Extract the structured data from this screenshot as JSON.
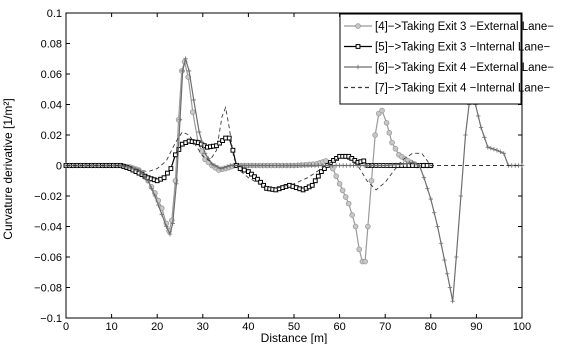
{
  "chart_data": {
    "type": "line",
    "title": "",
    "xlabel": "Distance [m]",
    "ylabel": "Curvature derivative [1/m²]",
    "xlim": [
      0,
      100
    ],
    "ylim": [
      -0.1,
      0.1
    ],
    "x_ticks": [
      0,
      10,
      20,
      30,
      40,
      50,
      60,
      70,
      80,
      90,
      100
    ],
    "y_ticks": [
      -0.1,
      -0.08,
      -0.06,
      -0.04,
      -0.02,
      0,
      0.02,
      0.04,
      0.06,
      0.08,
      0.1
    ],
    "x_tick_labels": [
      "0",
      "10",
      "20",
      "30",
      "40",
      "50",
      "60",
      "70",
      "80",
      "90",
      "100"
    ],
    "y_tick_labels": [
      "−0.1",
      "−0.08",
      "−0.06",
      "−0.04",
      "−0.02",
      "0",
      "0.02",
      "0.04",
      "0.06",
      "0.08",
      "0.1"
    ],
    "grid": false,
    "legend_position": "top-right",
    "series": [
      {
        "name": "[4]−>Taking Exit 3 −External Lane−",
        "color": "#9a9a9a",
        "marker": "circle",
        "dash": "solid",
        "points": [
          [
            0,
            0
          ],
          [
            12,
            0
          ],
          [
            14,
            -0.001
          ],
          [
            16,
            -0.003
          ],
          [
            18,
            -0.01
          ],
          [
            19.5,
            -0.018
          ],
          [
            21,
            -0.028
          ],
          [
            22,
            -0.038
          ],
          [
            22.6,
            -0.043
          ],
          [
            23.2,
            -0.036
          ],
          [
            24,
            -0.01
          ],
          [
            24.7,
            0.03
          ],
          [
            25.4,
            0.062
          ],
          [
            26,
            0.068
          ],
          [
            26.8,
            0.058
          ],
          [
            27.8,
            0.035
          ],
          [
            29,
            0.015
          ],
          [
            30.5,
            0.004
          ],
          [
            32,
            0.0
          ],
          [
            33.5,
            -0.003
          ],
          [
            35,
            -0.002
          ],
          [
            37,
            0.0
          ],
          [
            40,
            0.0
          ],
          [
            45,
            0.0
          ],
          [
            50,
            0.0
          ],
          [
            55,
            0.001
          ],
          [
            57,
            0.003
          ],
          [
            58.5,
            -0.002
          ],
          [
            60,
            -0.012
          ],
          [
            62,
            -0.025
          ],
          [
            63.5,
            -0.04
          ],
          [
            64.3,
            -0.055
          ],
          [
            65,
            -0.063
          ],
          [
            65.6,
            -0.063
          ],
          [
            66.2,
            -0.04
          ],
          [
            67,
            -0.01
          ],
          [
            67.8,
            0.02
          ],
          [
            68.6,
            0.034
          ],
          [
            69.3,
            0.036
          ],
          [
            70.3,
            0.028
          ],
          [
            71.5,
            0.015
          ],
          [
            73,
            0.007
          ],
          [
            75,
            0.003
          ],
          [
            77,
            0.0
          ],
          [
            80,
            0.0
          ]
        ]
      },
      {
        "name": "[5]−>Taking Exit 3 −Internal Lane−",
        "color": "#000000",
        "marker": "square",
        "dash": "solid",
        "points": [
          [
            0,
            0
          ],
          [
            12,
            0
          ],
          [
            14,
            -0.002
          ],
          [
            16,
            -0.005
          ],
          [
            18,
            -0.008
          ],
          [
            20,
            -0.01
          ],
          [
            21.5,
            -0.008
          ],
          [
            23,
            -0.002
          ],
          [
            24,
            0.007
          ],
          [
            25.5,
            0.014
          ],
          [
            27,
            0.016
          ],
          [
            29,
            0.015
          ],
          [
            31,
            0.012
          ],
          [
            33,
            0.013
          ],
          [
            35,
            0.018
          ],
          [
            35.8,
            0.018
          ],
          [
            36.6,
            0.01
          ],
          [
            37.4,
            0.0
          ],
          [
            38.2,
            -0.002
          ],
          [
            40,
            -0.004
          ],
          [
            42,
            -0.009
          ],
          [
            44,
            -0.015
          ],
          [
            46,
            -0.016
          ],
          [
            49,
            -0.013
          ],
          [
            52,
            -0.016
          ],
          [
            54,
            -0.013
          ],
          [
            56,
            -0.004
          ],
          [
            58,
            0.002
          ],
          [
            60,
            0.006
          ],
          [
            62,
            0.006
          ],
          [
            64,
            0.002
          ],
          [
            65.3,
            0.003
          ],
          [
            66.2,
            0.0
          ],
          [
            68,
            0.0
          ],
          [
            80,
            0.0
          ]
        ]
      },
      {
        "name": "[6]−>Taking Exit 4 −External Lane−",
        "color": "#6e6e6e",
        "marker": "plus",
        "dash": "solid",
        "points": [
          [
            0,
            0
          ],
          [
            12,
            0
          ],
          [
            14,
            -0.001
          ],
          [
            16,
            -0.003
          ],
          [
            18,
            -0.01
          ],
          [
            19.5,
            -0.02
          ],
          [
            21,
            -0.032
          ],
          [
            22,
            -0.04
          ],
          [
            22.8,
            -0.045
          ],
          [
            23.4,
            -0.038
          ],
          [
            24.2,
            -0.012
          ],
          [
            25,
            0.03
          ],
          [
            25.6,
            0.062
          ],
          [
            26.2,
            0.07
          ],
          [
            27,
            0.062
          ],
          [
            28,
            0.043
          ],
          [
            29.2,
            0.022
          ],
          [
            30.5,
            0.008
          ],
          [
            32,
            0.001
          ],
          [
            34,
            -0.002
          ],
          [
            36,
            0.0
          ],
          [
            40,
            0.0
          ],
          [
            50,
            0.0
          ],
          [
            60,
            0.0
          ],
          [
            70,
            0.0
          ],
          [
            74,
            0.001
          ],
          [
            76,
            0.002
          ],
          [
            77.5,
            0.0
          ],
          [
            78.5,
            -0.008
          ],
          [
            80,
            -0.022
          ],
          [
            81.5,
            -0.04
          ],
          [
            83,
            -0.062
          ],
          [
            84.2,
            -0.08
          ],
          [
            84.8,
            -0.089
          ],
          [
            85.6,
            -0.06
          ],
          [
            86.6,
            -0.02
          ],
          [
            87.6,
            0.02
          ],
          [
            88.4,
            0.04
          ],
          [
            89,
            0.046
          ],
          [
            89.8,
            0.04
          ],
          [
            91,
            0.025
          ],
          [
            92.5,
            0.012
          ],
          [
            94.5,
            0.01
          ],
          [
            96,
            0.008
          ],
          [
            97,
            0.0
          ],
          [
            100,
            0.0
          ]
        ]
      },
      {
        "name": "[7]−>Taking Exit 4 −Internal Lane−",
        "color": "#3a3a3a",
        "marker": "none",
        "dash": "dashed",
        "points": [
          [
            0,
            0
          ],
          [
            12,
            0
          ],
          [
            14,
            -0.001
          ],
          [
            16,
            -0.003
          ],
          [
            18,
            -0.004
          ],
          [
            20,
            -0.002
          ],
          [
            22,
            0.003
          ],
          [
            24,
            0.015
          ],
          [
            25.5,
            0.022
          ],
          [
            27,
            0.02
          ],
          [
            28.5,
            0.013
          ],
          [
            30,
            0.006
          ],
          [
            31.5,
            0.003
          ],
          [
            33,
            0.01
          ],
          [
            34.2,
            0.032
          ],
          [
            35,
            0.038
          ],
          [
            35.8,
            0.025
          ],
          [
            36.8,
            0.005
          ],
          [
            38,
            -0.003
          ],
          [
            40,
            -0.008
          ],
          [
            43,
            -0.013
          ],
          [
            46,
            -0.015
          ],
          [
            50,
            -0.012
          ],
          [
            53,
            -0.008
          ],
          [
            56,
            -0.002
          ],
          [
            58,
            0.002
          ],
          [
            60,
            0.005
          ],
          [
            62,
            0.004
          ],
          [
            64,
            0.0
          ],
          [
            66,
            -0.01
          ],
          [
            68,
            -0.016
          ],
          [
            70,
            -0.011
          ],
          [
            72,
            -0.003
          ],
          [
            74,
            0.004
          ],
          [
            76,
            0.008
          ],
          [
            78,
            0.008
          ],
          [
            80,
            0.0
          ],
          [
            100,
            0.0
          ]
        ]
      }
    ]
  }
}
